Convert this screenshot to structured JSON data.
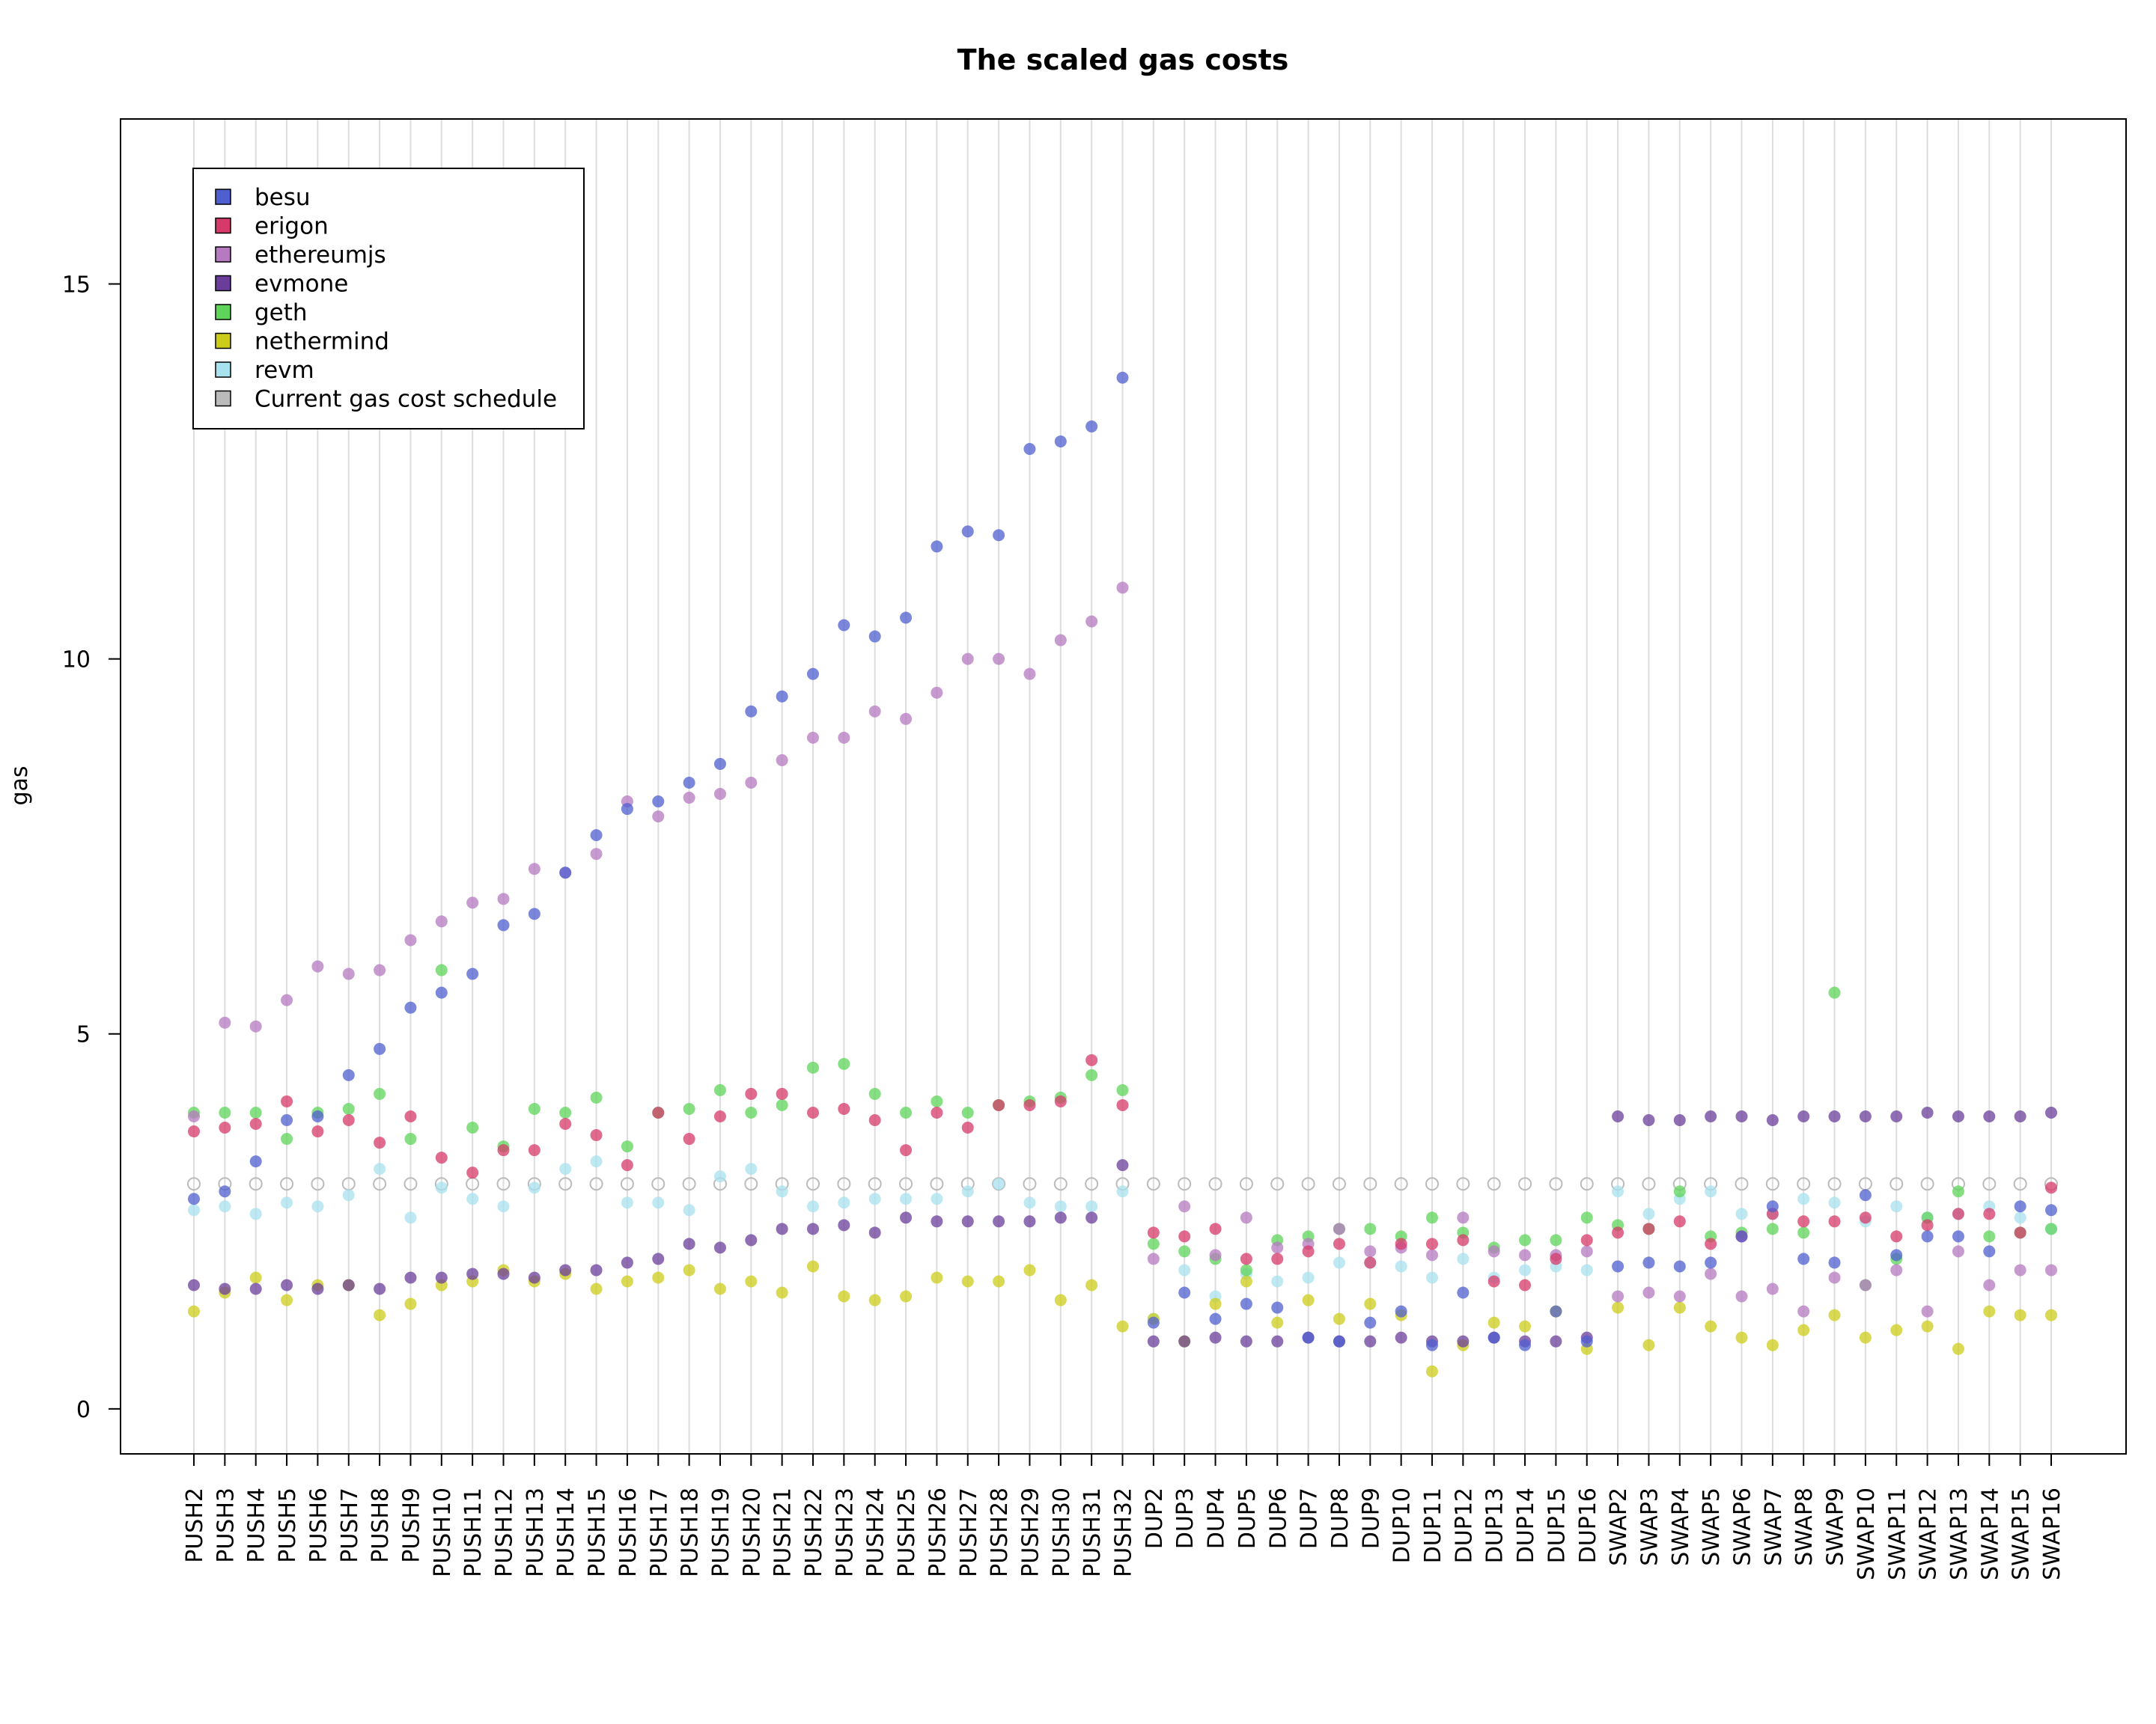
{
  "chart_data": {
    "type": "scatter",
    "title": "The scaled gas costs",
    "xlabel": "",
    "ylabel": "gas",
    "ylim": [
      -0.6,
      17.2
    ],
    "yticks": [
      0,
      5,
      10,
      15
    ],
    "grid": "vertical",
    "legend_position": "top-left",
    "categories": [
      "PUSH2",
      "PUSH3",
      "PUSH4",
      "PUSH5",
      "PUSH6",
      "PUSH7",
      "PUSH8",
      "PUSH9",
      "PUSH10",
      "PUSH11",
      "PUSH12",
      "PUSH13",
      "PUSH14",
      "PUSH15",
      "PUSH16",
      "PUSH17",
      "PUSH18",
      "PUSH19",
      "PUSH20",
      "PUSH21",
      "PUSH22",
      "PUSH23",
      "PUSH24",
      "PUSH25",
      "PUSH26",
      "PUSH27",
      "PUSH28",
      "PUSH29",
      "PUSH30",
      "PUSH31",
      "PUSH32",
      "DUP2",
      "DUP3",
      "DUP4",
      "DUP5",
      "DUP6",
      "DUP7",
      "DUP8",
      "DUP9",
      "DUP10",
      "DUP11",
      "DUP12",
      "DUP13",
      "DUP14",
      "DUP15",
      "DUP16",
      "SWAP2",
      "SWAP3",
      "SWAP4",
      "SWAP5",
      "SWAP6",
      "SWAP7",
      "SWAP8",
      "SWAP9",
      "SWAP10",
      "SWAP11",
      "SWAP12",
      "SWAP13",
      "SWAP14",
      "SWAP15",
      "SWAP16"
    ],
    "series": [
      {
        "name": "besu",
        "color": "#4f5fcf",
        "values": [
          2.8,
          2.9,
          3.3,
          3.85,
          3.9,
          4.45,
          4.8,
          5.35,
          5.55,
          5.8,
          6.45,
          6.6,
          7.15,
          7.65,
          8.0,
          8.1,
          8.35,
          8.6,
          9.3,
          9.5,
          9.8,
          10.45,
          10.3,
          10.55,
          11.5,
          11.7,
          11.65,
          12.8,
          12.9,
          13.1,
          13.75,
          1.15,
          1.55,
          1.2,
          1.4,
          1.35,
          0.95,
          0.9,
          1.15,
          1.3,
          0.85,
          1.55,
          0.95,
          0.85,
          1.3,
          0.9,
          1.9,
          1.95,
          1.9,
          1.95,
          2.3,
          2.7,
          2.0,
          1.95,
          2.85,
          2.05,
          2.3,
          2.3,
          2.1,
          2.7,
          2.65
        ]
      },
      {
        "name": "erigon",
        "color": "#d53a6a",
        "values": [
          3.7,
          3.75,
          3.8,
          4.1,
          3.7,
          3.85,
          3.55,
          3.9,
          3.35,
          3.15,
          3.45,
          3.45,
          3.8,
          3.65,
          3.25,
          3.95,
          3.6,
          3.9,
          4.2,
          4.2,
          3.95,
          4.0,
          3.85,
          3.45,
          3.95,
          3.75,
          4.05,
          4.05,
          4.1,
          4.65,
          4.05,
          2.35,
          2.3,
          2.4,
          2.0,
          2.0,
          2.1,
          2.2,
          1.95,
          2.2,
          2.2,
          2.25,
          1.7,
          1.65,
          2.0,
          2.25,
          2.35,
          2.4,
          2.5,
          2.2,
          2.3,
          2.6,
          2.5,
          2.5,
          2.55,
          2.3,
          2.45,
          2.6,
          2.6,
          2.35,
          2.95
        ]
      },
      {
        "name": "ethereumjs",
        "color": "#b57ac0",
        "values": [
          3.9,
          5.15,
          5.1,
          5.45,
          5.9,
          5.8,
          5.85,
          6.25,
          6.5,
          6.75,
          6.8,
          7.2,
          7.15,
          7.4,
          8.1,
          7.9,
          8.15,
          8.2,
          8.35,
          8.65,
          8.95,
          8.95,
          9.3,
          9.2,
          9.55,
          10.0,
          10.0,
          9.8,
          10.25,
          10.5,
          10.95,
          2.0,
          2.7,
          2.05,
          2.55,
          2.15,
          2.2,
          2.4,
          2.1,
          2.15,
          2.05,
          2.55,
          2.1,
          2.05,
          2.05,
          2.1,
          1.5,
          1.55,
          1.5,
          1.8,
          1.5,
          1.6,
          1.3,
          1.75,
          1.65,
          1.85,
          1.3,
          2.1,
          1.65,
          1.85,
          1.85
        ]
      },
      {
        "name": "evmone",
        "color": "#6a3d9a",
        "values": [
          1.65,
          1.6,
          1.6,
          1.65,
          1.6,
          1.65,
          1.6,
          1.75,
          1.75,
          1.8,
          1.8,
          1.75,
          1.85,
          1.85,
          1.95,
          2.0,
          2.2,
          2.15,
          2.25,
          2.4,
          2.4,
          2.45,
          2.35,
          2.55,
          2.5,
          2.5,
          2.5,
          2.5,
          2.55,
          2.55,
          3.25,
          0.9,
          0.9,
          0.95,
          0.9,
          0.9,
          0.95,
          0.9,
          0.9,
          0.95,
          0.9,
          0.9,
          0.95,
          0.9,
          0.9,
          0.95,
          3.9,
          3.85,
          3.85,
          3.9,
          3.9,
          3.85,
          3.9,
          3.9,
          3.9,
          3.9,
          3.95,
          3.9,
          3.9,
          3.9,
          3.95
        ]
      },
      {
        "name": "geth",
        "color": "#5fd45a",
        "values": [
          3.95,
          3.95,
          3.95,
          3.6,
          3.95,
          4.0,
          4.2,
          3.6,
          5.85,
          3.75,
          3.5,
          4.0,
          3.95,
          4.15,
          3.5,
          3.95,
          4.0,
          4.25,
          3.95,
          4.05,
          4.55,
          4.6,
          4.2,
          3.95,
          4.1,
          3.95,
          4.05,
          4.1,
          4.15,
          4.45,
          4.25,
          2.2,
          2.1,
          2.0,
          1.85,
          2.25,
          2.3,
          2.4,
          2.4,
          2.3,
          2.55,
          2.35,
          2.15,
          2.25,
          2.25,
          2.55,
          2.45,
          2.4,
          2.9,
          2.3,
          2.35,
          2.4,
          2.35,
          5.55,
          1.65,
          2.0,
          2.55,
          2.9,
          2.3,
          2.35,
          2.4
        ]
      },
      {
        "name": "nethermind",
        "color": "#cccc1a",
        "values": [
          1.3,
          1.55,
          1.75,
          1.45,
          1.65,
          1.65,
          1.25,
          1.4,
          1.65,
          1.7,
          1.85,
          1.7,
          1.8,
          1.6,
          1.7,
          1.75,
          1.85,
          1.6,
          1.7,
          1.55,
          1.9,
          1.5,
          1.45,
          1.5,
          1.75,
          1.7,
          1.7,
          1.85,
          1.45,
          1.65,
          1.1,
          1.2,
          0.9,
          1.4,
          1.7,
          1.15,
          1.45,
          1.2,
          1.4,
          1.25,
          0.5,
          0.85,
          1.15,
          1.1,
          1.3,
          0.8,
          1.35,
          0.85,
          1.35,
          1.1,
          0.95,
          0.85,
          1.05,
          1.25,
          0.95,
          1.05,
          1.1,
          0.8,
          1.3,
          1.25,
          1.25
        ]
      },
      {
        "name": "revm",
        "color": "#a8e2ef",
        "values": [
          2.65,
          2.7,
          2.6,
          2.75,
          2.7,
          2.85,
          3.2,
          2.55,
          2.95,
          2.8,
          2.7,
          2.95,
          3.2,
          3.3,
          2.75,
          2.75,
          2.65,
          3.1,
          3.2,
          2.9,
          2.7,
          2.75,
          2.8,
          2.8,
          2.8,
          2.9,
          3.0,
          2.75,
          2.7,
          2.7,
          2.9,
          1.2,
          1.85,
          1.5,
          1.8,
          1.7,
          1.75,
          1.95,
          1.95,
          1.9,
          1.75,
          2.0,
          1.75,
          1.85,
          1.9,
          1.85,
          2.9,
          2.6,
          2.8,
          2.9,
          2.6,
          2.6,
          2.8,
          2.75,
          2.5,
          2.7,
          2.55,
          2.6,
          2.7,
          2.55,
          2.4
        ]
      },
      {
        "name": "Current gas cost schedule",
        "color": "#bbbbbb",
        "hollow": true,
        "values": [
          3,
          3,
          3,
          3,
          3,
          3,
          3,
          3,
          3,
          3,
          3,
          3,
          3,
          3,
          3,
          3,
          3,
          3,
          3,
          3,
          3,
          3,
          3,
          3,
          3,
          3,
          3,
          3,
          3,
          3,
          3,
          3,
          3,
          3,
          3,
          3,
          3,
          3,
          3,
          3,
          3,
          3,
          3,
          3,
          3,
          3,
          3,
          3,
          3,
          3,
          3,
          3,
          3,
          3,
          3,
          3,
          3,
          3,
          3,
          3,
          3
        ]
      }
    ]
  }
}
